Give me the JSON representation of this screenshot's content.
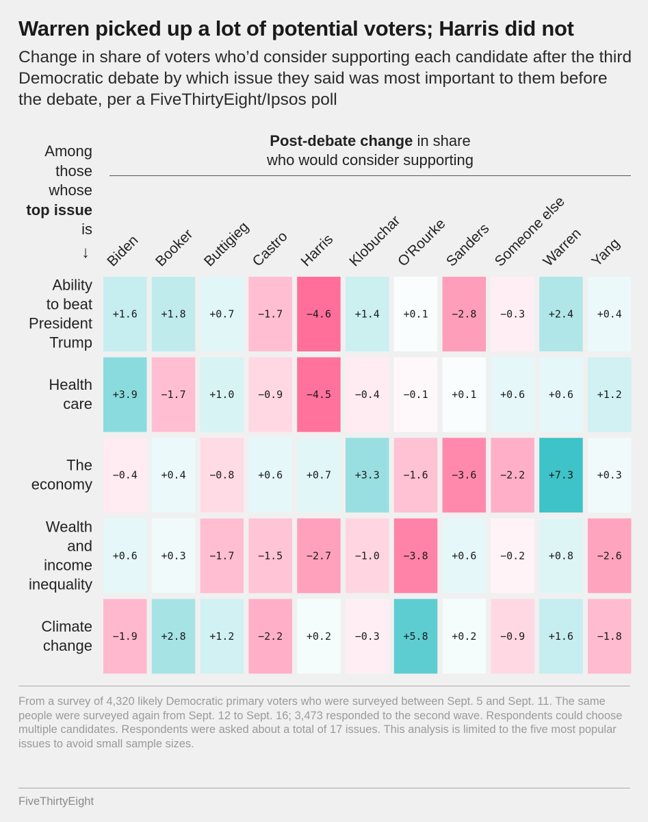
{
  "title": "Warren picked up a lot of potential voters; Harris did not",
  "subtitle": "Change in share of voters who’d consider supporting each candidate after the third Democratic debate by which issue they said was most important to them before the debate, per a FiveThirtyEight/Ipsos poll",
  "row_header": {
    "line1": "Among",
    "line2": "those",
    "line3": "whose",
    "strong": "top issue",
    "line5": "is",
    "arrow_icon": "down-arrow-icon"
  },
  "column_header": {
    "strong": "Post-debate change",
    "rest1": " in share",
    "line2": "who would consider supporting"
  },
  "chart_data": {
    "type": "heatmap",
    "title": "Warren picked up a lot of potential voters; Harris did not",
    "xlabel": "Post-debate change in share who would consider supporting",
    "ylabel": "Among those whose top issue is",
    "columns": [
      "Biden",
      "Booker",
      "Buttigieg",
      "Castro",
      "Harris",
      "Klobuchar",
      "O'Rourke",
      "Sanders",
      "Someone else",
      "Warren",
      "Yang"
    ],
    "rows": [
      {
        "issue": [
          "Ability",
          "to beat",
          "President",
          "Trump"
        ],
        "values": [
          1.6,
          1.8,
          0.7,
          -1.7,
          -4.6,
          1.4,
          0.1,
          -2.8,
          -0.3,
          2.4,
          0.4
        ]
      },
      {
        "issue": [
          "Health",
          "care"
        ],
        "values": [
          3.9,
          -1.7,
          1.0,
          -0.9,
          -4.5,
          -0.4,
          -0.1,
          0.1,
          0.6,
          0.6,
          1.2
        ]
      },
      {
        "issue": [
          "The",
          "economy"
        ],
        "values": [
          -0.4,
          0.4,
          -0.8,
          0.6,
          0.7,
          3.3,
          -1.6,
          -3.6,
          -2.2,
          7.3,
          0.3
        ]
      },
      {
        "issue": [
          "Wealth",
          "and",
          "income",
          "inequality"
        ],
        "values": [
          0.6,
          0.3,
          -1.7,
          -1.5,
          -2.7,
          -1.0,
          -3.8,
          0.6,
          -0.2,
          0.8,
          -2.6
        ]
      },
      {
        "issue": [
          "Climate",
          "change"
        ],
        "values": [
          -1.9,
          2.8,
          1.2,
          -2.2,
          0.2,
          -0.3,
          5.8,
          0.2,
          -0.9,
          1.6,
          -1.8
        ]
      }
    ],
    "positive_color": "#3ec3c8",
    "negative_color": "#ff6f9a",
    "neutral_color": "#ffffff"
  },
  "footnote": "From a survey of 4,320 likely Democratic primary voters who were surveyed between Sept. 5 and Sept. 11. The same people were surveyed again from Sept. 12 to Sept. 16; 3,473 responded to the second wave. Respondents could choose multiple candidates. Respondents were asked about a total of 17 issues. This analysis is limited to the five most popular issues to avoid small sample sizes.",
  "source": "FiveThirtyEight"
}
